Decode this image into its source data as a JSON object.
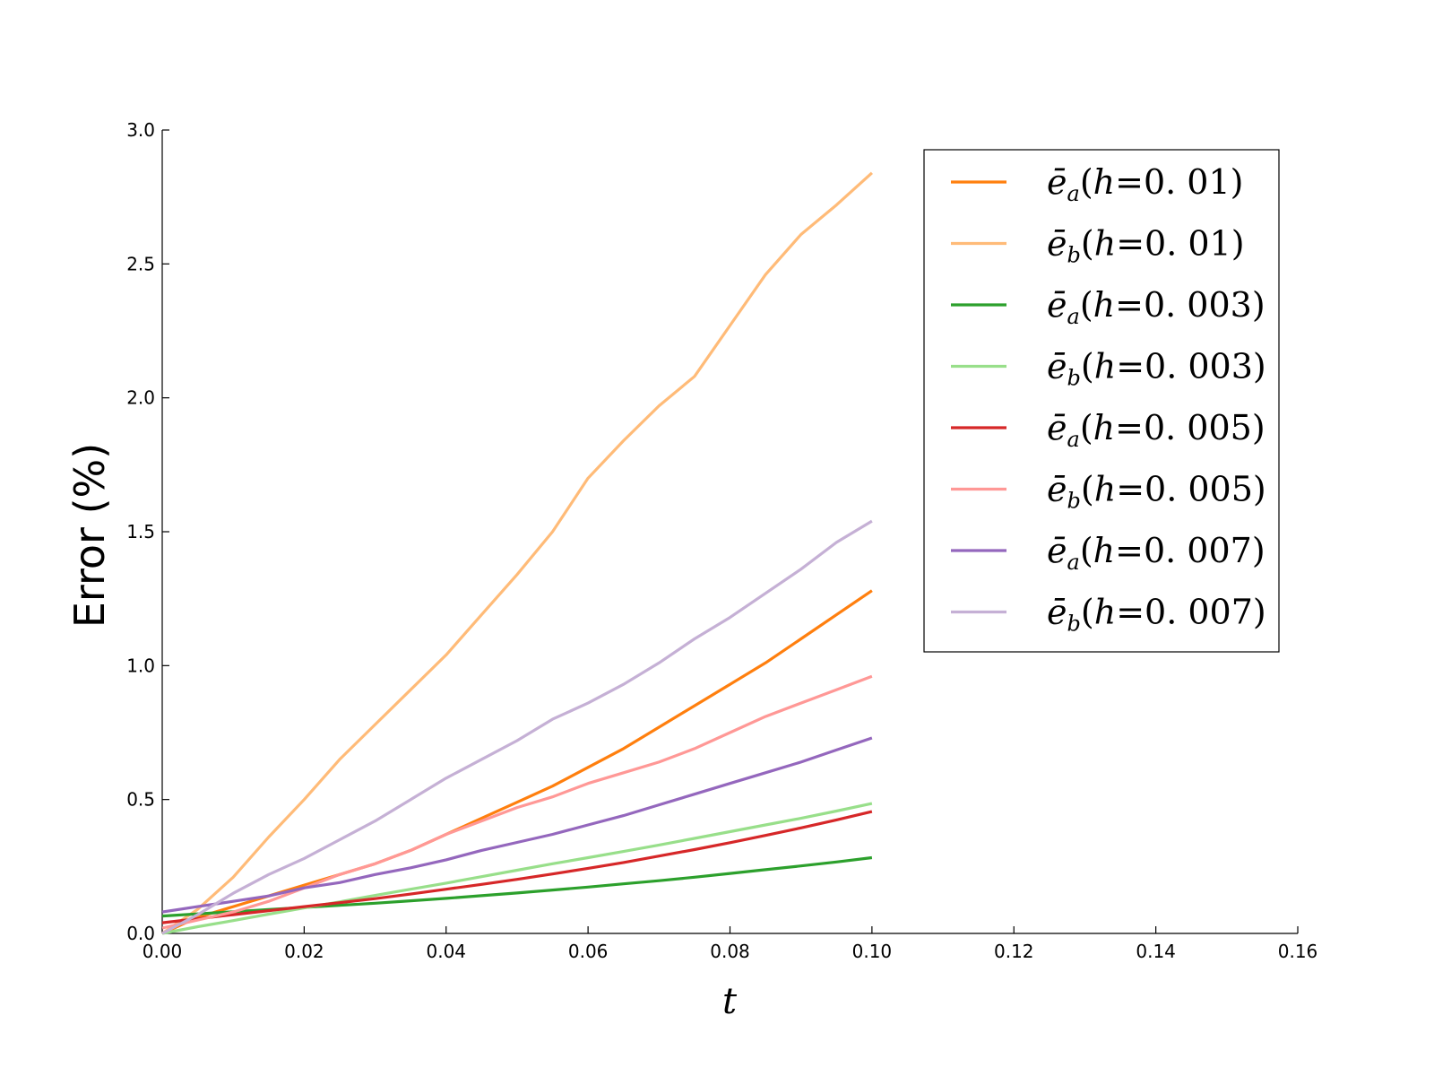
{
  "chart_data": {
    "type": "line",
    "title": "",
    "xlabel": "t",
    "ylabel": "Error (%)",
    "xlim": [
      0.0,
      0.16
    ],
    "ylim": [
      0.0,
      3.0
    ],
    "xticks": [
      "0.00",
      "0.02",
      "0.04",
      "0.06",
      "0.08",
      "0.10",
      "0.12",
      "0.14",
      "0.16"
    ],
    "yticks": [
      "0.0",
      "0.5",
      "1.0",
      "1.5",
      "2.0",
      "2.5",
      "3.0"
    ],
    "grid": false,
    "legend_position": "top-right",
    "x": [
      0.0,
      0.005,
      0.01,
      0.015,
      0.02,
      0.025,
      0.03,
      0.035,
      0.04,
      0.045,
      0.05,
      0.055,
      0.06,
      0.065,
      0.07,
      0.075,
      0.08,
      0.085,
      0.09,
      0.095,
      0.1
    ],
    "series": [
      {
        "name": "ē_a(h = 0.01)",
        "sym": "a",
        "h": "0.01",
        "color": "#ff7f0e",
        "values": [
          0.0,
          0.06,
          0.1,
          0.14,
          0.18,
          0.22,
          0.26,
          0.31,
          0.37,
          0.43,
          0.49,
          0.55,
          0.62,
          0.69,
          0.77,
          0.85,
          0.93,
          1.01,
          1.1,
          1.19,
          1.28
        ]
      },
      {
        "name": "ē_b(h = 0.01)",
        "sym": "b",
        "h": "0.01",
        "color": "#ffbb78",
        "values": [
          0.0,
          0.09,
          0.21,
          0.36,
          0.5,
          0.65,
          0.78,
          0.91,
          1.04,
          1.19,
          1.34,
          1.5,
          1.7,
          1.84,
          1.97,
          2.08,
          2.27,
          2.46,
          2.61,
          2.72,
          2.84
        ]
      },
      {
        "name": "ē_a(h = 0.003)",
        "sym": "a",
        "h": "0.003",
        "color": "#2ca02c",
        "values": [
          0.065,
          0.073,
          0.081,
          0.089,
          0.097,
          0.105,
          0.113,
          0.122,
          0.131,
          0.141,
          0.151,
          0.162,
          0.173,
          0.185,
          0.197,
          0.21,
          0.224,
          0.238,
          0.252,
          0.267,
          0.283
        ]
      },
      {
        "name": "ē_b(h = 0.003)",
        "sym": "b",
        "h": "0.003",
        "color": "#98df8a",
        "values": [
          0.0,
          0.025,
          0.048,
          0.072,
          0.095,
          0.118,
          0.142,
          0.165,
          0.188,
          0.212,
          0.236,
          0.26,
          0.283,
          0.306,
          0.33,
          0.355,
          0.38,
          0.405,
          0.43,
          0.457,
          0.485
        ]
      },
      {
        "name": "ē_a(h = 0.005)",
        "sym": "a",
        "h": "0.005",
        "color": "#d62728",
        "values": [
          0.04,
          0.055,
          0.07,
          0.085,
          0.1,
          0.115,
          0.13,
          0.147,
          0.165,
          0.183,
          0.202,
          0.222,
          0.243,
          0.265,
          0.289,
          0.313,
          0.339,
          0.366,
          0.394,
          0.424,
          0.455
        ]
      },
      {
        "name": "ē_b(h = 0.005)",
        "sym": "b",
        "h": "0.005",
        "color": "#ff9896",
        "values": [
          0.02,
          0.05,
          0.08,
          0.12,
          0.17,
          0.22,
          0.26,
          0.31,
          0.37,
          0.42,
          0.47,
          0.51,
          0.56,
          0.6,
          0.64,
          0.69,
          0.75,
          0.81,
          0.86,
          0.91,
          0.96
        ]
      },
      {
        "name": "ē_a(h = 0.007)",
        "sym": "a",
        "h": "0.007",
        "color": "#9467bd",
        "values": [
          0.08,
          0.1,
          0.12,
          0.14,
          0.17,
          0.19,
          0.22,
          0.245,
          0.275,
          0.31,
          0.34,
          0.37,
          0.405,
          0.44,
          0.48,
          0.52,
          0.56,
          0.6,
          0.64,
          0.685,
          0.73
        ]
      },
      {
        "name": "ē_b(h = 0.007)",
        "sym": "b",
        "h": "0.007",
        "color": "#c5b0d5",
        "values": [
          0.0,
          0.07,
          0.15,
          0.22,
          0.28,
          0.35,
          0.42,
          0.5,
          0.58,
          0.65,
          0.72,
          0.8,
          0.86,
          0.93,
          1.01,
          1.1,
          1.18,
          1.27,
          1.36,
          1.46,
          1.54
        ]
      }
    ]
  }
}
